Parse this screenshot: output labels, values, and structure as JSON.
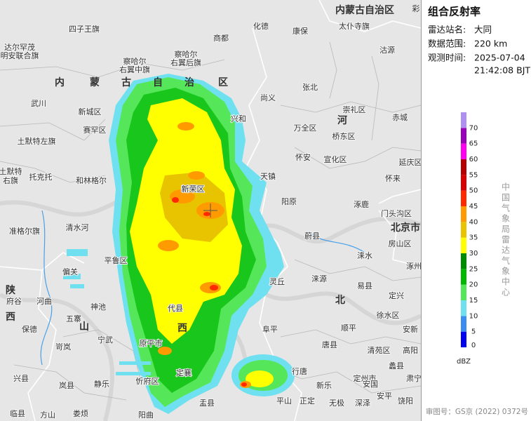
{
  "panel": {
    "title": "组合反射率",
    "rows": [
      {
        "label": "雷达站名:",
        "value": "大同"
      },
      {
        "label": "数据范围:",
        "value": "220 km"
      },
      {
        "label": "观测时间:",
        "value": "2025-07-04"
      }
    ],
    "time_line2": "21:42:08 BJT",
    "credit": "中国气象局雷达气象中心",
    "footer": "审图号：GS京 (2022) 0372号",
    "corner": "彩"
  },
  "legend": {
    "values": [
      0,
      5,
      10,
      15,
      20,
      25,
      30,
      35,
      40,
      45,
      50,
      55,
      60,
      65,
      70
    ],
    "colors": [
      "#0000f0",
      "#3a8ef0",
      "#6ee0f0",
      "#55e65a",
      "#00b800",
      "#008c00",
      "#ffff00",
      "#e8c400",
      "#ff9a00",
      "#ff2a00",
      "#d80000",
      "#b40000",
      "#ff00f0",
      "#9a00b8",
      "#ad90f0"
    ],
    "unit": "dBZ"
  },
  "map": {
    "labels": [
      "内蒙古自治区",
      "四子王旗",
      "商都",
      "化德",
      "康保",
      "太仆寺旗",
      "达尔罕茂",
      "明安联合旗",
      "察哈尔",
      "右翼中旗",
      "察哈尔",
      "右翼后旗",
      "沽源",
      "内",
      "蒙",
      "古",
      "自",
      "治",
      "区",
      "尚义",
      "张北",
      "武川",
      "新城区",
      "兴和",
      "崇礼区",
      "赤城",
      "河",
      "赛罕区",
      "万全区",
      "桥东区",
      "土默特左旗",
      "天镇",
      "怀安",
      "宣化区",
      "延庆区",
      "土默特",
      "右旗",
      "托克托",
      "和林格尔",
      "新荣区",
      "阳原",
      "涿鹿",
      "怀来",
      "门头沟区",
      "准格尔旗",
      "清水河",
      "北京市",
      "蔚县",
      "房山区",
      "涞水",
      "偏关",
      "平鲁区",
      "灵丘",
      "涞源",
      "易县",
      "涿州",
      "陕",
      "西",
      "府谷",
      "河曲",
      "神池",
      "五寨",
      "山",
      "代县",
      "西",
      "保德",
      "宁武",
      "北",
      "定兴",
      "徐水区",
      "阜平",
      "顺平",
      "安新",
      "岢岚",
      "原平市",
      "唐县",
      "高阳",
      "清苑区",
      "兴县",
      "岚县",
      "静乐",
      "忻府区",
      "定襄",
      "行唐",
      "定州市",
      "安国",
      "新乐",
      "蠡县",
      "肃宁",
      "临县",
      "方山",
      "娄烦",
      "阳曲",
      "盂县",
      "平山",
      "正定",
      "无极",
      "深泽",
      "安平",
      "饶阳"
    ]
  }
}
